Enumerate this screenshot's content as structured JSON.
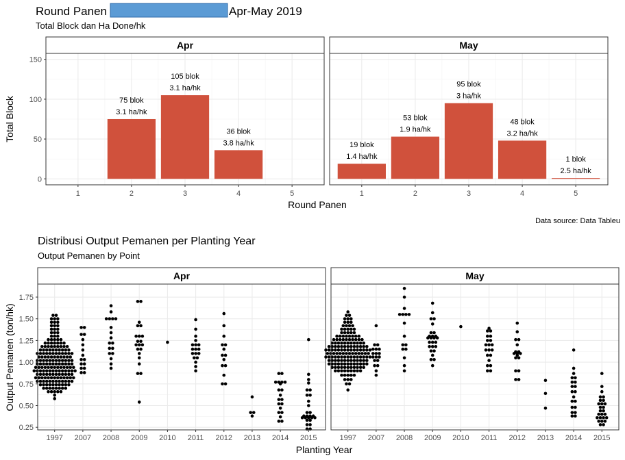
{
  "header": {
    "title_prefix": "Round Panen",
    "title_suffix": "Apr-May 2019",
    "redaction_color": "#5b9bd5",
    "subtitle": "Total Block dan Ha Done/hk"
  },
  "source_note": "Data source: Data Tableu",
  "colors": {
    "bar": "#d0513c",
    "point": "#000000",
    "strip": "#ffffff",
    "panel_border": "#333333",
    "grid": "#ebebeb"
  },
  "chart_data": [
    {
      "type": "bar",
      "title": "",
      "xlabel": "Round Panen",
      "ylabel": "Total Block",
      "ylim": [
        0,
        160
      ],
      "yticks": [
        0,
        50,
        100,
        150
      ],
      "xticks": [
        1,
        2,
        3,
        4,
        5
      ],
      "grid": true,
      "facets": [
        {
          "name": "Apr",
          "bars": [
            {
              "x": 2,
              "value": 75,
              "label1": "75 blok",
              "label2": "3.1 ha/hk"
            },
            {
              "x": 3,
              "value": 105,
              "label1": "105 blok",
              "label2": "3.1 ha/hk"
            },
            {
              "x": 4,
              "value": 36,
              "label1": "36 blok",
              "label2": "3.8 ha/hk"
            }
          ]
        },
        {
          "name": "May",
          "bars": [
            {
              "x": 1,
              "value": 19,
              "label1": "19 blok",
              "label2": "1.4 ha/hk"
            },
            {
              "x": 2,
              "value": 53,
              "label1": "53 blok",
              "label2": "1.9 ha/hk"
            },
            {
              "x": 3,
              "value": 95,
              "label1": "95 blok",
              "label2": "3 ha/hk"
            },
            {
              "x": 4,
              "value": 48,
              "label1": "48 blok",
              "label2": "3.2 ha/hk"
            },
            {
              "x": 5,
              "value": 1,
              "label1": "1 blok",
              "label2": "2.5 ha/hk"
            }
          ]
        }
      ]
    },
    {
      "type": "scatter",
      "title": "Distribusi Output Pemanen per Planting Year",
      "subtitle": "Output Pemanen by Point",
      "xlabel": "Planting Year",
      "ylabel": "Output Pemanen (ton/hk)",
      "ylim": [
        0.22,
        1.9
      ],
      "yticks": [
        0.25,
        0.5,
        0.75,
        1.0,
        1.25,
        1.5,
        1.75
      ],
      "ytick_labels": [
        "0.25",
        "0.50",
        "0.75",
        "1.00",
        "1.25",
        "1.50",
        "1.75"
      ],
      "categories": [
        "1997",
        "2007",
        "2008",
        "2009",
        "2010",
        "2011",
        "2012",
        "2013",
        "2014",
        "2015"
      ],
      "grid": true,
      "facets": [
        {
          "name": "Apr",
          "groups": [
            [
              [
                0.58,
                1
              ],
              [
                0.62,
                1
              ],
              [
                0.66,
                5
              ],
              [
                0.7,
                8
              ],
              [
                0.74,
                10
              ],
              [
                0.78,
                12
              ],
              [
                0.82,
                13
              ],
              [
                0.86,
                12
              ],
              [
                0.9,
                14
              ],
              [
                0.94,
                13
              ],
              [
                0.98,
                12
              ],
              [
                1.02,
                12
              ],
              [
                1.06,
                11
              ],
              [
                1.1,
                12
              ],
              [
                1.14,
                10
              ],
              [
                1.18,
                9
              ],
              [
                1.22,
                7
              ],
              [
                1.26,
                5
              ],
              [
                1.3,
                3
              ],
              [
                1.34,
                3
              ],
              [
                1.38,
                3
              ],
              [
                1.42,
                3
              ],
              [
                1.46,
                3
              ],
              [
                1.5,
                3
              ],
              [
                1.54,
                2
              ]
            ],
            [
              [
                0.88,
                2
              ],
              [
                0.93,
                2
              ],
              [
                0.98,
                2
              ],
              [
                1.03,
                2
              ],
              [
                1.08,
                1
              ],
              [
                1.14,
                1
              ],
              [
                1.2,
                1
              ],
              [
                1.26,
                1
              ],
              [
                1.32,
                2
              ],
              [
                1.4,
                2
              ]
            ],
            [
              [
                0.93,
                1
              ],
              [
                0.98,
                1
              ],
              [
                1.04,
                1
              ],
              [
                1.1,
                2
              ],
              [
                1.16,
                2
              ],
              [
                1.22,
                2
              ],
              [
                1.28,
                1
              ],
              [
                1.34,
                1
              ],
              [
                1.4,
                1
              ],
              [
                1.5,
                4
              ],
              [
                1.58,
                1
              ],
              [
                1.65,
                1
              ]
            ],
            [
              [
                0.54,
                1
              ],
              [
                0.87,
                2
              ],
              [
                0.98,
                1
              ],
              [
                1.05,
                1
              ],
              [
                1.1,
                1
              ],
              [
                1.15,
                2
              ],
              [
                1.2,
                3
              ],
              [
                1.24,
                2
              ],
              [
                1.3,
                3
              ],
              [
                1.42,
                2
              ],
              [
                1.46,
                1
              ],
              [
                1.7,
                2
              ]
            ],
            [
              [
                1.23,
                1
              ]
            ],
            [
              [
                0.9,
                1
              ],
              [
                0.95,
                1
              ],
              [
                1.0,
                1
              ],
              [
                1.05,
                2
              ],
              [
                1.1,
                3
              ],
              [
                1.15,
                3
              ],
              [
                1.2,
                3
              ],
              [
                1.25,
                1
              ],
              [
                1.3,
                1
              ],
              [
                1.38,
                1
              ],
              [
                1.49,
                1
              ]
            ],
            [
              [
                0.75,
                2
              ],
              [
                0.85,
                1
              ],
              [
                0.96,
                2
              ],
              [
                1.03,
                1
              ],
              [
                1.08,
                2
              ],
              [
                1.15,
                1
              ],
              [
                1.2,
                2
              ],
              [
                1.3,
                1
              ],
              [
                1.42,
                1
              ],
              [
                1.56,
                1
              ]
            ],
            [
              [
                0.38,
                1
              ],
              [
                0.42,
                2
              ],
              [
                0.6,
                1
              ]
            ],
            [
              [
                0.32,
                2
              ],
              [
                0.37,
                1
              ],
              [
                0.42,
                2
              ],
              [
                0.47,
                1
              ],
              [
                0.52,
                2
              ],
              [
                0.57,
                2
              ],
              [
                0.62,
                1
              ],
              [
                0.68,
                2
              ],
              [
                0.75,
                1
              ],
              [
                0.77,
                4
              ],
              [
                0.87,
                2
              ]
            ],
            [
              [
                0.23,
                2
              ],
              [
                0.28,
                2
              ],
              [
                0.33,
                2
              ],
              [
                0.36,
                5
              ],
              [
                0.38,
                4
              ],
              [
                0.42,
                2
              ],
              [
                0.5,
                1
              ],
              [
                0.55,
                1
              ],
              [
                0.62,
                2
              ],
              [
                0.68,
                2
              ],
              [
                0.76,
                1
              ],
              [
                0.8,
                1
              ],
              [
                0.86,
                1
              ],
              [
                1.26,
                1
              ]
            ]
          ]
        },
        {
          "name": "May",
          "groups": [
            [
              [
                0.68,
                1
              ],
              [
                0.75,
                2
              ],
              [
                0.8,
                3
              ],
              [
                0.85,
                5
              ],
              [
                0.9,
                9
              ],
              [
                0.94,
                11
              ],
              [
                0.98,
                13
              ],
              [
                1.02,
                13
              ],
              [
                1.06,
                15
              ],
              [
                1.1,
                14
              ],
              [
                1.14,
                15
              ],
              [
                1.18,
                13
              ],
              [
                1.22,
                11
              ],
              [
                1.26,
                10
              ],
              [
                1.3,
                8
              ],
              [
                1.34,
                5
              ],
              [
                1.38,
                5
              ],
              [
                1.42,
                4
              ],
              [
                1.46,
                3
              ],
              [
                1.5,
                3
              ],
              [
                1.54,
                2
              ],
              [
                1.58,
                1
              ]
            ],
            [
              [
                0.85,
                1
              ],
              [
                0.9,
                1
              ],
              [
                0.96,
                2
              ],
              [
                1.02,
                2
              ],
              [
                1.06,
                3
              ],
              [
                1.1,
                3
              ],
              [
                1.15,
                3
              ],
              [
                1.2,
                2
              ],
              [
                1.42,
                1
              ]
            ],
            [
              [
                0.9,
                1
              ],
              [
                0.96,
                1
              ],
              [
                1.05,
                1
              ],
              [
                1.15,
                2
              ],
              [
                1.2,
                2
              ],
              [
                1.3,
                1
              ],
              [
                1.45,
                1
              ],
              [
                1.55,
                4
              ],
              [
                1.62,
                1
              ],
              [
                1.75,
                1
              ],
              [
                1.85,
                1
              ]
            ],
            [
              [
                0.96,
                1
              ],
              [
                1.03,
                2
              ],
              [
                1.08,
                1
              ],
              [
                1.13,
                2
              ],
              [
                1.18,
                3
              ],
              [
                1.23,
                3
              ],
              [
                1.28,
                4
              ],
              [
                1.3,
                3
              ],
              [
                1.34,
                2
              ],
              [
                1.44,
                1
              ],
              [
                1.5,
                2
              ],
              [
                1.57,
                1
              ],
              [
                1.68,
                1
              ]
            ],
            [
              [
                1.41,
                1
              ]
            ],
            [
              [
                0.9,
                2
              ],
              [
                0.96,
                2
              ],
              [
                1.02,
                1
              ],
              [
                1.08,
                2
              ],
              [
                1.14,
                3
              ],
              [
                1.2,
                3
              ],
              [
                1.25,
                2
              ],
              [
                1.3,
                2
              ],
              [
                1.36,
                2
              ],
              [
                1.39,
                1
              ]
            ],
            [
              [
                0.8,
                2
              ],
              [
                0.9,
                2
              ],
              [
                1.05,
                2
              ],
              [
                1.08,
                1
              ],
              [
                1.1,
                3
              ],
              [
                1.12,
                2
              ],
              [
                1.2,
                1
              ],
              [
                1.26,
                2
              ],
              [
                1.35,
                1
              ],
              [
                1.45,
                1
              ]
            ],
            [
              [
                0.47,
                1
              ],
              [
                0.64,
                1
              ],
              [
                0.79,
                1
              ]
            ],
            [
              [
                0.38,
                2
              ],
              [
                0.42,
                2
              ],
              [
                0.48,
                2
              ],
              [
                0.55,
                2
              ],
              [
                0.6,
                1
              ],
              [
                0.66,
                2
              ],
              [
                0.72,
                2
              ],
              [
                0.77,
                2
              ],
              [
                0.82,
                2
              ],
              [
                0.87,
                1
              ],
              [
                0.93,
                1
              ],
              [
                1.14,
                1
              ]
            ],
            [
              [
                0.28,
                2
              ],
              [
                0.32,
                3
              ],
              [
                0.36,
                4
              ],
              [
                0.4,
                3
              ],
              [
                0.44,
                2
              ],
              [
                0.48,
                2
              ],
              [
                0.52,
                3
              ],
              [
                0.56,
                2
              ],
              [
                0.6,
                2
              ],
              [
                0.66,
                1
              ],
              [
                0.72,
                1
              ],
              [
                0.87,
                1
              ]
            ]
          ]
        }
      ]
    }
  ]
}
